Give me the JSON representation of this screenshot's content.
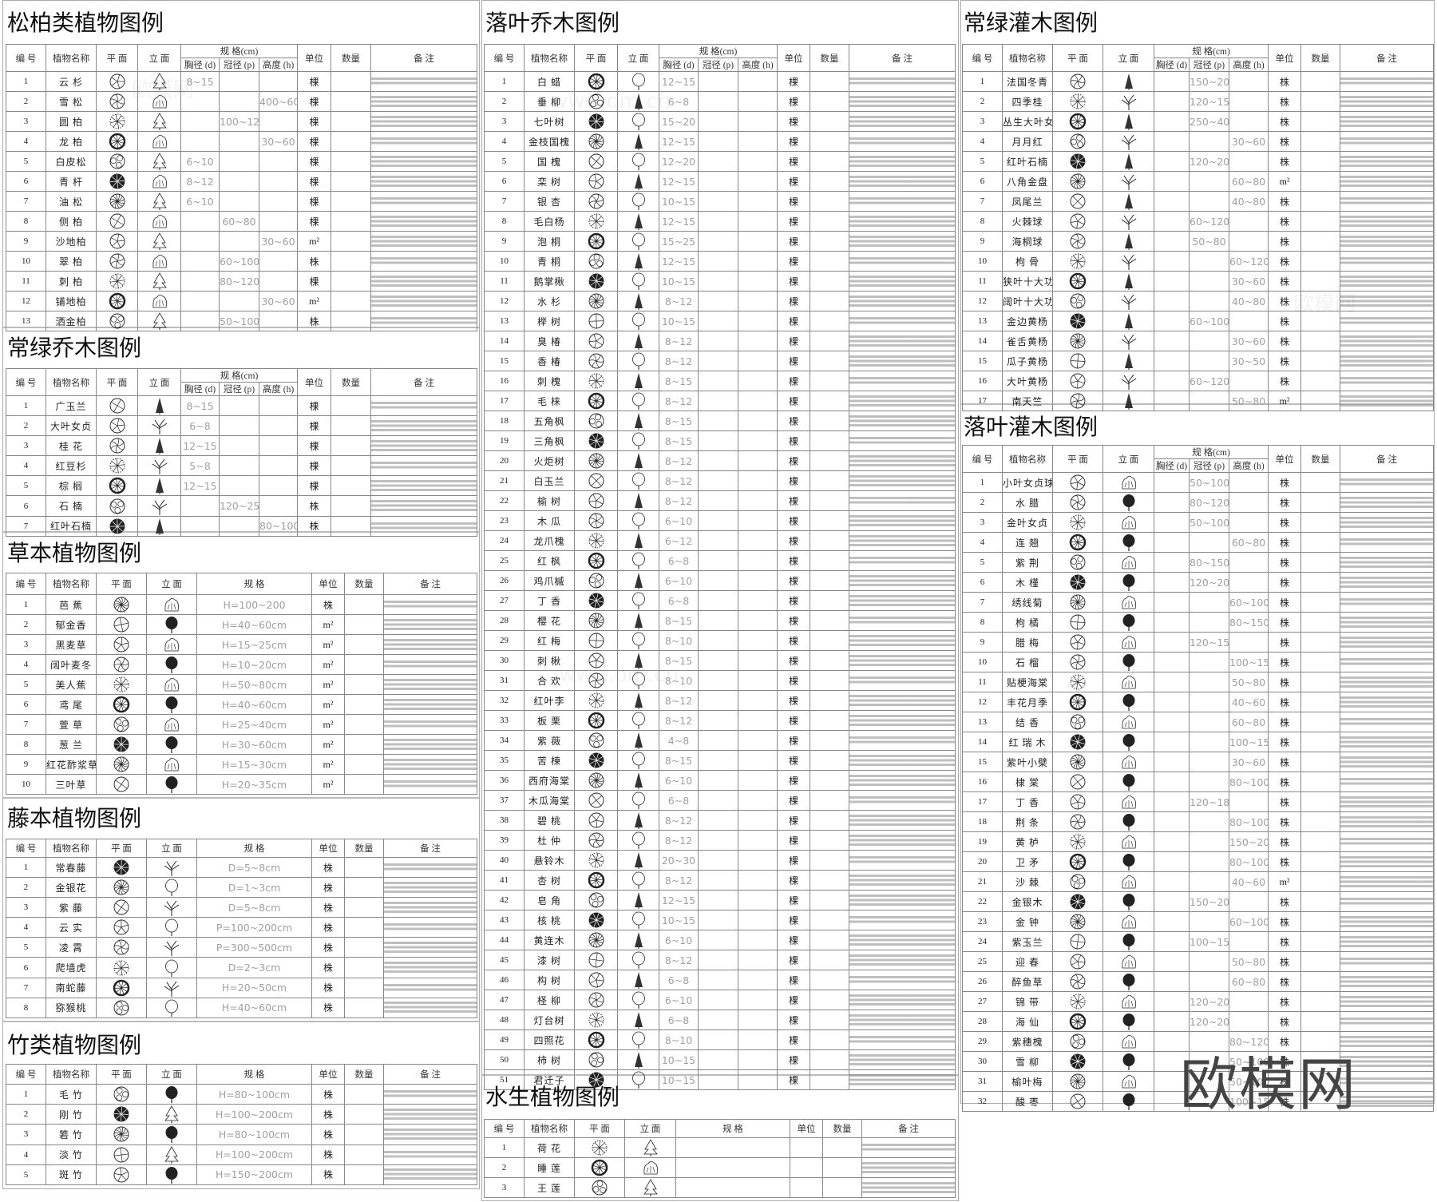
{
  "headers": {
    "no": "编 号",
    "name": "植物名称",
    "plan": "平 面",
    "elevation": "立 面",
    "spec_cm": "规 格(cm)",
    "spec": "规 格",
    "dbh": "胸径 (d)",
    "crown": "冠径 (p)",
    "height": "高度 (h)",
    "unit": "单位",
    "qty": "数量",
    "remark": "备 注"
  },
  "icons": {
    "plan": "plant-plan-symbol-icon",
    "elevation": "plant-elevation-symbol-icon"
  },
  "watermark": "欧模网",
  "watermark_faint": [
    "欧模网",
    "www.om.cn"
  ],
  "tables": [
    {
      "title": "松柏类植物图例",
      "type": "spec3",
      "rows": [
        [
          "1",
          "云 杉",
          "8~15",
          "",
          "",
          "棵"
        ],
        [
          "2",
          "雪 松",
          "",
          "",
          "400~600",
          "棵"
        ],
        [
          "3",
          "圆 柏",
          "",
          "100~120",
          "",
          "棵"
        ],
        [
          "4",
          "龙 柏",
          "",
          "",
          "30~60",
          "棵"
        ],
        [
          "5",
          "白皮松",
          "6~10",
          "",
          "",
          "棵"
        ],
        [
          "6",
          "青 杆",
          "8~12",
          "",
          "",
          "棵"
        ],
        [
          "7",
          "油 松",
          "6~10",
          "",
          "",
          "棵"
        ],
        [
          "8",
          "侧 柏",
          "",
          "60~80",
          "",
          "棵"
        ],
        [
          "9",
          "沙地柏",
          "",
          "",
          "30~60",
          "m²"
        ],
        [
          "10",
          "翠 柏",
          "",
          "60~100",
          "",
          "株"
        ],
        [
          "11",
          "刺 柏",
          "",
          "80~120",
          "",
          "棵"
        ],
        [
          "12",
          "铺地柏",
          "",
          "",
          "30~60",
          "m²"
        ],
        [
          "13",
          "洒金柏",
          "",
          "50~100",
          "",
          "株"
        ]
      ]
    },
    {
      "title": "常绿乔木图例",
      "type": "spec3",
      "rows": [
        [
          "1",
          "广玉兰",
          "8~15",
          "",
          "",
          "棵"
        ],
        [
          "2",
          "大叶女贞",
          "6~8",
          "",
          "",
          "棵"
        ],
        [
          "3",
          "桂 花",
          "12~15",
          "",
          "",
          "棵"
        ],
        [
          "4",
          "红豆杉",
          "5~8",
          "",
          "",
          "棵"
        ],
        [
          "5",
          "棕 榈",
          "12~15",
          "",
          "",
          "棵"
        ],
        [
          "6",
          "石 楠",
          "",
          "120~250",
          "",
          "株"
        ],
        [
          "7",
          "红叶石楠",
          "",
          "",
          "80~100",
          "株"
        ]
      ]
    },
    {
      "title": "草本植物图例",
      "type": "spec1",
      "rows": [
        [
          "1",
          "芭 蕉",
          "H=100~200",
          "株"
        ],
        [
          "2",
          "郁金香",
          "H=40~60cm",
          "m²"
        ],
        [
          "3",
          "黑麦草",
          "H=15~25cm",
          "m²"
        ],
        [
          "4",
          "阔叶麦冬",
          "H=10~20cm",
          "m²"
        ],
        [
          "5",
          "美人蕉",
          "H=50~80cm",
          "m²"
        ],
        [
          "6",
          "鸢 尾",
          "H=40~60cm",
          "m²"
        ],
        [
          "7",
          "萱 草",
          "H=25~40cm",
          "m²"
        ],
        [
          "8",
          "葱 兰",
          "H=30~60cm",
          "m²"
        ],
        [
          "9",
          "红花酢浆草",
          "H=15~30cm",
          "m²"
        ],
        [
          "10",
          "三叶草",
          "H=20~35cm",
          "m²"
        ]
      ]
    },
    {
      "title": "藤本植物图例",
      "type": "spec1",
      "rows": [
        [
          "1",
          "常春藤",
          "D=5~8cm",
          "株"
        ],
        [
          "2",
          "金银花",
          "D=1~3cm",
          "株"
        ],
        [
          "3",
          "紫 藤",
          "D=5~8cm",
          "株"
        ],
        [
          "4",
          "云 实",
          "P=100~200cm",
          "株"
        ],
        [
          "5",
          "凌 霄",
          "P=300~500cm",
          "株"
        ],
        [
          "6",
          "爬墙虎",
          "D=2~3cm",
          "株"
        ],
        [
          "7",
          "南蛇藤",
          "H=20~50cm",
          "株"
        ],
        [
          "8",
          "猕猴桃",
          "H=40~60cm",
          "株"
        ]
      ]
    },
    {
      "title": "竹类植物图例",
      "type": "spec1",
      "rows": [
        [
          "1",
          "毛 竹",
          "H=80~100cm",
          "株"
        ],
        [
          "2",
          "刚 竹",
          "H=100~200cm",
          "株"
        ],
        [
          "3",
          "箬 竹",
          "H=80~100cm",
          "株"
        ],
        [
          "4",
          "淡 竹",
          "H=100~200cm",
          "株"
        ],
        [
          "5",
          "斑 竹",
          "H=150~200cm",
          "株"
        ]
      ]
    },
    {
      "title": "落叶乔木图例",
      "type": "spec3",
      "rows": [
        [
          "1",
          "白 蜡",
          "12~15",
          "",
          "",
          "棵"
        ],
        [
          "2",
          "垂 柳",
          "6~8",
          "",
          "",
          "棵"
        ],
        [
          "3",
          "七叶树",
          "15~20",
          "",
          "",
          "棵"
        ],
        [
          "4",
          "金枝国槐",
          "12~15",
          "",
          "",
          "棵"
        ],
        [
          "5",
          "国 槐",
          "12~20",
          "",
          "",
          "棵"
        ],
        [
          "6",
          "栾 树",
          "12~15",
          "",
          "",
          "棵"
        ],
        [
          "7",
          "银 杏",
          "10~15",
          "",
          "",
          "棵"
        ],
        [
          "8",
          "毛白杨",
          "12~15",
          "",
          "",
          "棵"
        ],
        [
          "9",
          "泡 桐",
          "15~25",
          "",
          "",
          "棵"
        ],
        [
          "10",
          "青 桐",
          "12~15",
          "",
          "",
          "棵"
        ],
        [
          "11",
          "鹅掌楸",
          "10~15",
          "",
          "",
          "棵"
        ],
        [
          "12",
          "水 杉",
          "8~12",
          "",
          "",
          "棵"
        ],
        [
          "13",
          "榉 树",
          "10~15",
          "",
          "",
          "棵"
        ],
        [
          "14",
          "臭 椿",
          "8~12",
          "",
          "",
          "棵"
        ],
        [
          "15",
          "香 椿",
          "8~12",
          "",
          "",
          "棵"
        ],
        [
          "16",
          "刺 槐",
          "8~15",
          "",
          "",
          "棵"
        ],
        [
          "17",
          "毛 梾",
          "8~12",
          "",
          "",
          "棵"
        ],
        [
          "18",
          "五角枫",
          "8~15",
          "",
          "",
          "棵"
        ],
        [
          "19",
          "三角枫",
          "8~15",
          "",
          "",
          "棵"
        ],
        [
          "20",
          "火炬树",
          "8~12",
          "",
          "",
          "棵"
        ],
        [
          "21",
          "白玉兰",
          "8~12",
          "",
          "",
          "棵"
        ],
        [
          "22",
          "榆 树",
          "8~12",
          "",
          "",
          "棵"
        ],
        [
          "23",
          "木 瓜",
          "6~10",
          "",
          "",
          "棵"
        ],
        [
          "24",
          "龙爪槐",
          "6~12",
          "",
          "",
          "棵"
        ],
        [
          "25",
          "红 枫",
          "6~8",
          "",
          "",
          "棵"
        ],
        [
          "26",
          "鸡爪槭",
          "6~10",
          "",
          "",
          "棵"
        ],
        [
          "27",
          "丁 香",
          "6~8",
          "",
          "",
          "棵"
        ],
        [
          "28",
          "樱 花",
          "8~15",
          "",
          "",
          "棵"
        ],
        [
          "29",
          "红 梅",
          "8~10",
          "",
          "",
          "棵"
        ],
        [
          "30",
          "刺 楸",
          "8~15",
          "",
          "",
          "棵"
        ],
        [
          "31",
          "合 欢",
          "8~10",
          "",
          "",
          "棵"
        ],
        [
          "32",
          "红叶李",
          "8~12",
          "",
          "",
          "棵"
        ],
        [
          "33",
          "板 栗",
          "8~12",
          "",
          "",
          "棵"
        ],
        [
          "34",
          "紫 薇",
          "4~8",
          "",
          "",
          "棵"
        ],
        [
          "35",
          "苦 楝",
          "8~15",
          "",
          "",
          "棵"
        ],
        [
          "36",
          "西府海棠",
          "6~10",
          "",
          "",
          "棵"
        ],
        [
          "37",
          "木瓜海棠",
          "6~8",
          "",
          "",
          "棵"
        ],
        [
          "38",
          "碧 桃",
          "8~12",
          "",
          "",
          "棵"
        ],
        [
          "39",
          "杜 仲",
          "8~12",
          "",
          "",
          "棵"
        ],
        [
          "40",
          "悬铃木",
          "20~30",
          "",
          "",
          "棵"
        ],
        [
          "41",
          "杏 树",
          "8~12",
          "",
          "",
          "棵"
        ],
        [
          "42",
          "皂 角",
          "12~15",
          "",
          "",
          "棵"
        ],
        [
          "43",
          "核 桃",
          "10~15",
          "",
          "",
          "棵"
        ],
        [
          "44",
          "黄连木",
          "6~10",
          "",
          "",
          "棵"
        ],
        [
          "45",
          "漆 树",
          "8~12",
          "",
          "",
          "棵"
        ],
        [
          "46",
          "构 树",
          "6~8",
          "",
          "",
          "棵"
        ],
        [
          "47",
          "柽 柳",
          "6~10",
          "",
          "",
          "棵"
        ],
        [
          "48",
          "灯台树",
          "6~8",
          "",
          "",
          "棵"
        ],
        [
          "49",
          "四照花",
          "8~10",
          "",
          "",
          "棵"
        ],
        [
          "50",
          "柿 树",
          "10~15",
          "",
          "",
          "棵"
        ],
        [
          "51",
          "君迁子",
          "10~15",
          "",
          "",
          "棵"
        ]
      ]
    },
    {
      "title": "水生植物图例",
      "type": "spec1",
      "rows": [
        [
          "1",
          "荷 花",
          "",
          ""
        ],
        [
          "2",
          "睡 莲",
          "",
          ""
        ],
        [
          "3",
          "王 莲",
          "",
          ""
        ]
      ]
    },
    {
      "title": "常绿灌木图例",
      "type": "spec3",
      "rows": [
        [
          "1",
          "法国冬青",
          "",
          "150~200",
          "",
          "株"
        ],
        [
          "2",
          "四季桂",
          "",
          "120~150",
          "",
          "株"
        ],
        [
          "3",
          "丛生大叶女贞",
          "",
          "250~400",
          "",
          "株"
        ],
        [
          "4",
          "月月红",
          "",
          "",
          "30~60",
          "株"
        ],
        [
          "5",
          "红叶石楠",
          "",
          "120~200",
          "",
          "株"
        ],
        [
          "6",
          "八角金盘",
          "",
          "",
          "60~80",
          "m²"
        ],
        [
          "7",
          "凤尾兰",
          "",
          "",
          "40~80",
          "株"
        ],
        [
          "8",
          "火棘球",
          "",
          "60~120",
          "",
          "株"
        ],
        [
          "9",
          "海桐球",
          "",
          "50~80",
          "",
          "株"
        ],
        [
          "10",
          "枸 骨",
          "",
          "",
          "60~120",
          "株"
        ],
        [
          "11",
          "狭叶十大功劳",
          "",
          "",
          "30~60",
          "株"
        ],
        [
          "12",
          "阔叶十大功劳",
          "",
          "",
          "40~80",
          "株"
        ],
        [
          "13",
          "金边黄杨",
          "",
          "60~100",
          "",
          "株"
        ],
        [
          "14",
          "雀舌黄杨",
          "",
          "",
          "30~60",
          "株"
        ],
        [
          "15",
          "瓜子黄杨",
          "",
          "",
          "30~50",
          "株"
        ],
        [
          "16",
          "大叶黄杨",
          "",
          "60~120",
          "",
          "株"
        ],
        [
          "17",
          "南天竺",
          "",
          "",
          "50~80",
          "m²"
        ]
      ]
    },
    {
      "title": "落叶灌木图例",
      "type": "spec3",
      "rows": [
        [
          "1",
          "小叶女贞球",
          "",
          "50~100",
          "",
          "株"
        ],
        [
          "2",
          "水 腊",
          "",
          "80~120",
          "",
          "株"
        ],
        [
          "3",
          "金叶女贞",
          "",
          "50~100",
          "",
          "株"
        ],
        [
          "4",
          "连 翘",
          "",
          "",
          "60~80",
          "株"
        ],
        [
          "5",
          "紫 荆",
          "",
          "80~150",
          "",
          "株"
        ],
        [
          "6",
          "木 槿",
          "",
          "120~200",
          "",
          "株"
        ],
        [
          "7",
          "绣线菊",
          "",
          "",
          "60~100",
          "株"
        ],
        [
          "8",
          "枸 橘",
          "",
          "",
          "80~150",
          "株"
        ],
        [
          "9",
          "腊 梅",
          "",
          "120~150",
          "",
          "株"
        ],
        [
          "10",
          "石 榴",
          "",
          "",
          "100~150",
          "株"
        ],
        [
          "11",
          "贴梗海棠",
          "",
          "",
          "50~80",
          "株"
        ],
        [
          "12",
          "丰花月季",
          "",
          "",
          "40~60",
          "株"
        ],
        [
          "13",
          "结 香",
          "",
          "",
          "60~80",
          "株"
        ],
        [
          "14",
          "红 瑞 木",
          "",
          "",
          "100~150",
          "株"
        ],
        [
          "15",
          "紫叶小檗",
          "",
          "",
          "30~60",
          "株"
        ],
        [
          "16",
          "棣 棠",
          "",
          "",
          "80~100",
          "株"
        ],
        [
          "17",
          "丁 香",
          "",
          "120~180",
          "",
          "株"
        ],
        [
          "18",
          "荆 条",
          "",
          "",
          "80~100",
          "株"
        ],
        [
          "19",
          "黄 栌",
          "",
          "",
          "150~200",
          "株"
        ],
        [
          "20",
          "卫 矛",
          "",
          "",
          "80~100",
          "株"
        ],
        [
          "21",
          "沙 棘",
          "",
          "",
          "40~60",
          "m²"
        ],
        [
          "22",
          "金银木",
          "",
          "150~200",
          "",
          "株"
        ],
        [
          "23",
          "金 钟",
          "",
          "",
          "60~100",
          "株"
        ],
        [
          "24",
          "紫玉兰",
          "",
          "100~150",
          "",
          "株"
        ],
        [
          "25",
          "迎 春",
          "",
          "",
          "50~80",
          "株"
        ],
        [
          "26",
          "醉鱼草",
          "",
          "",
          "60~80",
          "株"
        ],
        [
          "27",
          "锦 带",
          "",
          "120~200",
          "",
          "株"
        ],
        [
          "28",
          "海 仙",
          "",
          "120~200",
          "",
          "株"
        ],
        [
          "29",
          "紫穗槐",
          "",
          "",
          "80~120",
          "株"
        ],
        [
          "30",
          "雪 柳",
          "",
          "",
          "50~100",
          "株"
        ],
        [
          "31",
          "榆叶梅",
          "",
          "",
          "50~100",
          "株"
        ],
        [
          "32",
          "酸 枣",
          "",
          "",
          "100~150",
          "株"
        ]
      ]
    }
  ]
}
